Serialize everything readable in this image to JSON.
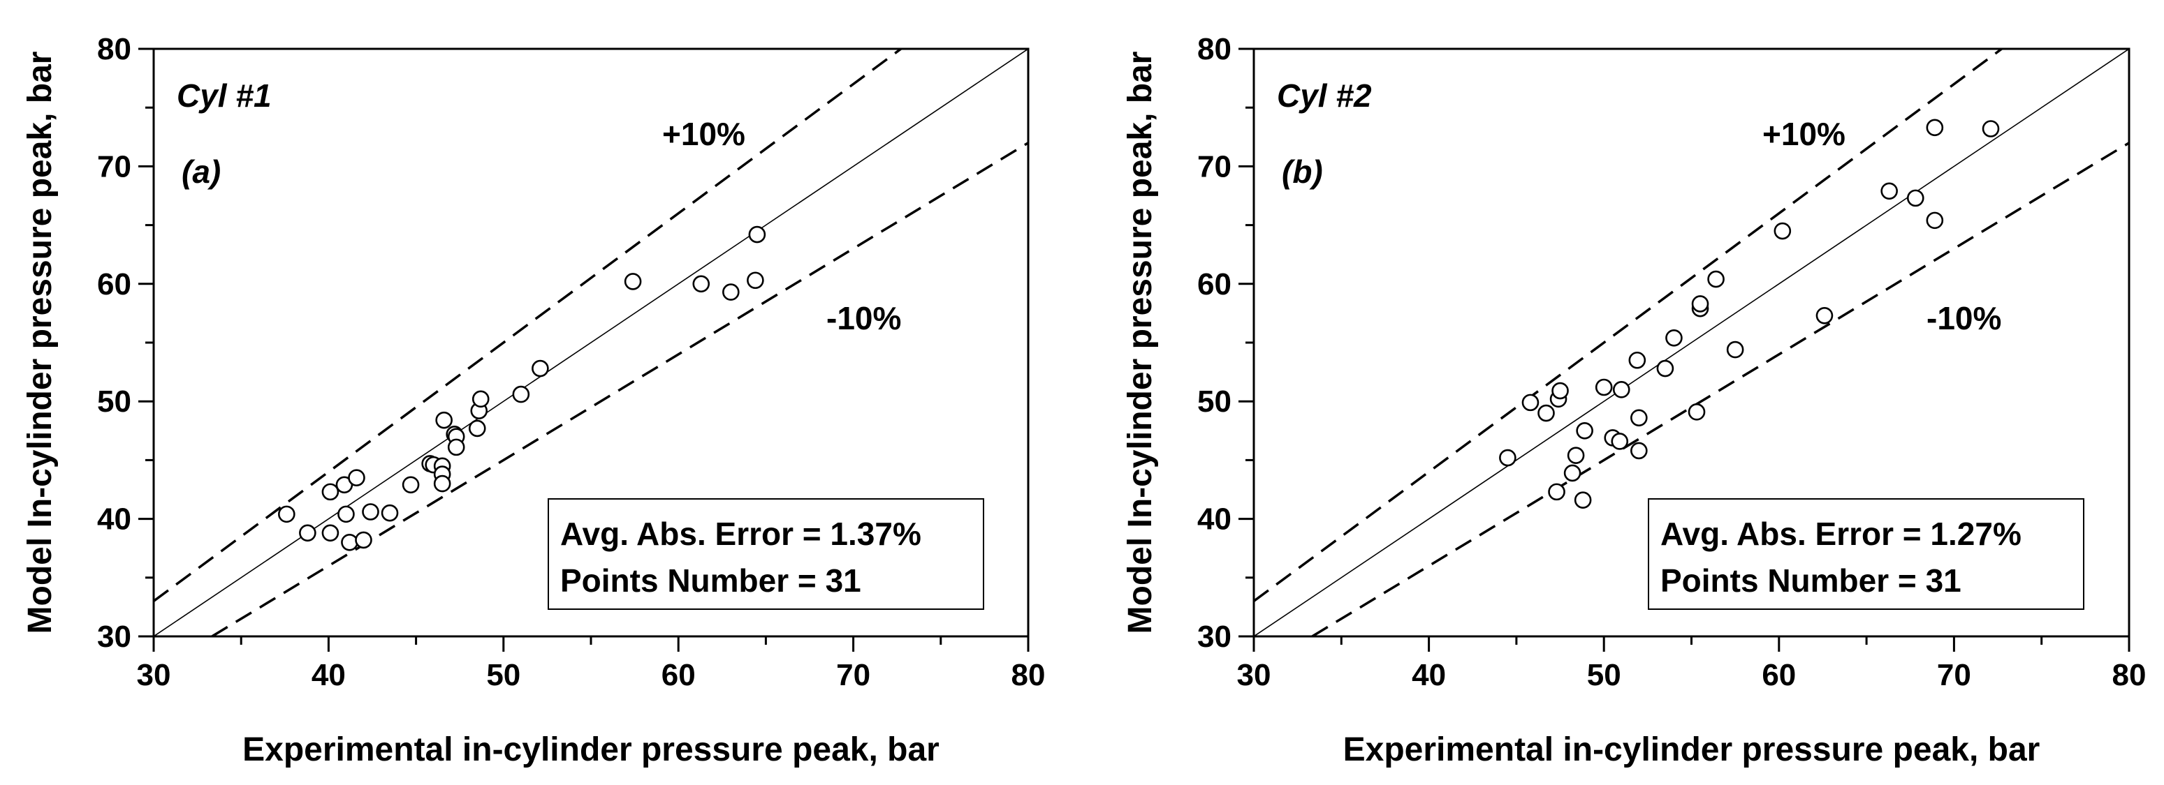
{
  "chart_data": [
    {
      "type": "scatter",
      "panel_label": "Cyl #1",
      "subplot_label": "(a)",
      "xlabel": "Experimental in-cylinder pressure peak, bar",
      "ylabel": "Model In-cylinder pressure peak, bar",
      "xlim": [
        30,
        80
      ],
      "ylim": [
        30,
        80
      ],
      "xticks": [
        30,
        40,
        50,
        60,
        70,
        80
      ],
      "yticks": [
        30,
        40,
        50,
        60,
        70,
        80
      ],
      "band_upper_label": "+10%",
      "band_lower_label": "-10%",
      "stats": {
        "avg_error": "Avg. Abs. Error = 1.37%",
        "points": "Points Number = 31"
      },
      "points": [
        [
          37.6,
          40.4
        ],
        [
          38.8,
          38.8
        ],
        [
          40.1,
          42.3
        ],
        [
          40.1,
          38.8
        ],
        [
          40.9,
          42.9
        ],
        [
          41.0,
          40.4
        ],
        [
          41.2,
          38.0
        ],
        [
          41.6,
          43.5
        ],
        [
          42.0,
          38.2
        ],
        [
          42.4,
          40.6
        ],
        [
          43.5,
          40.5
        ],
        [
          44.7,
          42.9
        ],
        [
          45.8,
          44.7
        ],
        [
          46.0,
          44.6
        ],
        [
          46.5,
          44.5
        ],
        [
          46.5,
          43.8
        ],
        [
          46.5,
          43.0
        ],
        [
          46.6,
          48.4
        ],
        [
          47.2,
          47.2
        ],
        [
          47.3,
          47.0
        ],
        [
          47.3,
          46.1
        ],
        [
          48.5,
          47.7
        ],
        [
          48.6,
          49.2
        ],
        [
          48.7,
          50.2
        ],
        [
          51.0,
          50.6
        ],
        [
          52.1,
          52.8
        ],
        [
          57.4,
          60.2
        ],
        [
          61.3,
          60.0
        ],
        [
          63.0,
          59.3
        ],
        [
          64.4,
          60.3
        ],
        [
          64.5,
          64.2
        ]
      ]
    },
    {
      "type": "scatter",
      "panel_label": "Cyl #2",
      "subplot_label": "(b)",
      "xlabel": "Experimental in-cylinder pressure peak, bar",
      "ylabel": "Model In-cylinder pressure peak, bar",
      "xlim": [
        30,
        80
      ],
      "ylim": [
        30,
        80
      ],
      "xticks": [
        30,
        40,
        50,
        60,
        70,
        80
      ],
      "yticks": [
        30,
        40,
        50,
        60,
        70,
        80
      ],
      "band_upper_label": "+10%",
      "band_lower_label": "-10%",
      "stats": {
        "avg_error": "Avg. Abs. Error = 1.27%",
        "points": "Points Number = 31"
      },
      "points": [
        [
          44.5,
          45.2
        ],
        [
          45.8,
          49.9
        ],
        [
          46.7,
          49.0
        ],
        [
          47.3,
          42.3
        ],
        [
          47.4,
          50.2
        ],
        [
          47.5,
          50.9
        ],
        [
          48.2,
          43.9
        ],
        [
          48.4,
          45.4
        ],
        [
          48.8,
          41.6
        ],
        [
          48.9,
          47.5
        ],
        [
          50.0,
          51.2
        ],
        [
          50.5,
          46.9
        ],
        [
          50.9,
          46.6
        ],
        [
          51.0,
          51.0
        ],
        [
          51.9,
          53.5
        ],
        [
          52.0,
          48.6
        ],
        [
          52.0,
          45.8
        ],
        [
          53.5,
          52.8
        ],
        [
          54.0,
          55.4
        ],
        [
          55.3,
          49.1
        ],
        [
          55.5,
          57.9
        ],
        [
          55.5,
          58.3
        ],
        [
          56.4,
          60.4
        ],
        [
          57.5,
          54.4
        ],
        [
          60.2,
          64.5
        ],
        [
          62.6,
          57.3
        ],
        [
          66.3,
          67.9
        ],
        [
          67.8,
          67.3
        ],
        [
          68.9,
          73.3
        ],
        [
          68.9,
          65.4
        ],
        [
          72.1,
          73.2
        ]
      ]
    }
  ]
}
